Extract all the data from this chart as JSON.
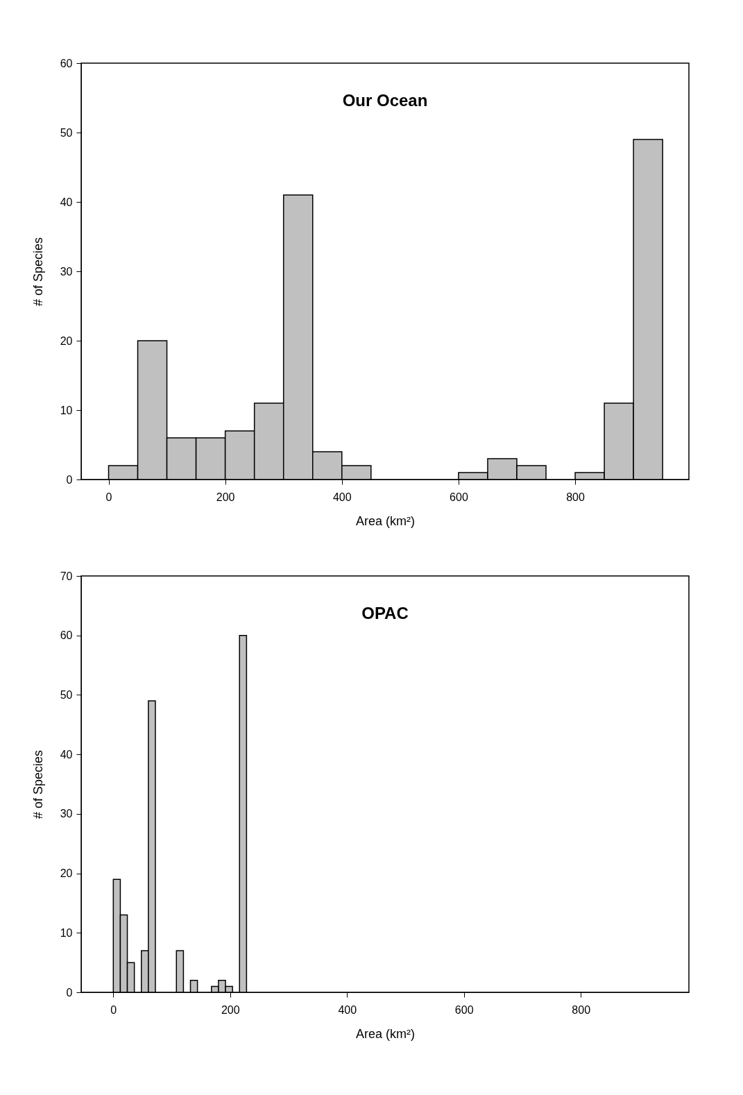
{
  "chart_data": [
    {
      "type": "histogram",
      "title": "Our Ocean",
      "xlabel": "Area (km²)",
      "ylabel": "# of Species",
      "bins": [
        0,
        50,
        100,
        150,
        200,
        250,
        300,
        350,
        400,
        450,
        500,
        550,
        600,
        650,
        700,
        750,
        800,
        850,
        900,
        950
      ],
      "values": [
        2,
        20,
        6,
        6,
        7,
        11,
        41,
        4,
        2,
        0,
        0,
        0,
        1,
        3,
        2,
        0,
        1,
        11,
        49
      ],
      "color": "#c0c0c0",
      "xlim": [
        -47,
        995
      ],
      "xticks": [
        0,
        200,
        400,
        600,
        800
      ],
      "ylim": [
        0,
        60
      ],
      "yticks": [
        0,
        10,
        20,
        30,
        40,
        50,
        60
      ],
      "grid": false
    },
    {
      "type": "histogram",
      "title": "OPAC",
      "xlabel": "Area (km²)",
      "ylabel": "# of Species",
      "bins": [
        0,
        12,
        24,
        36,
        48,
        60,
        72,
        84,
        96,
        108,
        120,
        132,
        144,
        156,
        168,
        180,
        192,
        204,
        216,
        228
      ],
      "values": [
        19,
        13,
        5,
        0,
        7,
        49,
        0,
        0,
        0,
        7,
        0,
        2,
        0,
        0,
        1,
        2,
        1,
        0,
        60
      ],
      "color": "#c0c0c0",
      "xlim": [
        -55,
        985
      ],
      "xticks": [
        0,
        200,
        400,
        600,
        800
      ],
      "ylim": [
        0,
        70
      ],
      "yticks": [
        0,
        10,
        20,
        30,
        40,
        50,
        60,
        70
      ],
      "grid": false
    }
  ]
}
